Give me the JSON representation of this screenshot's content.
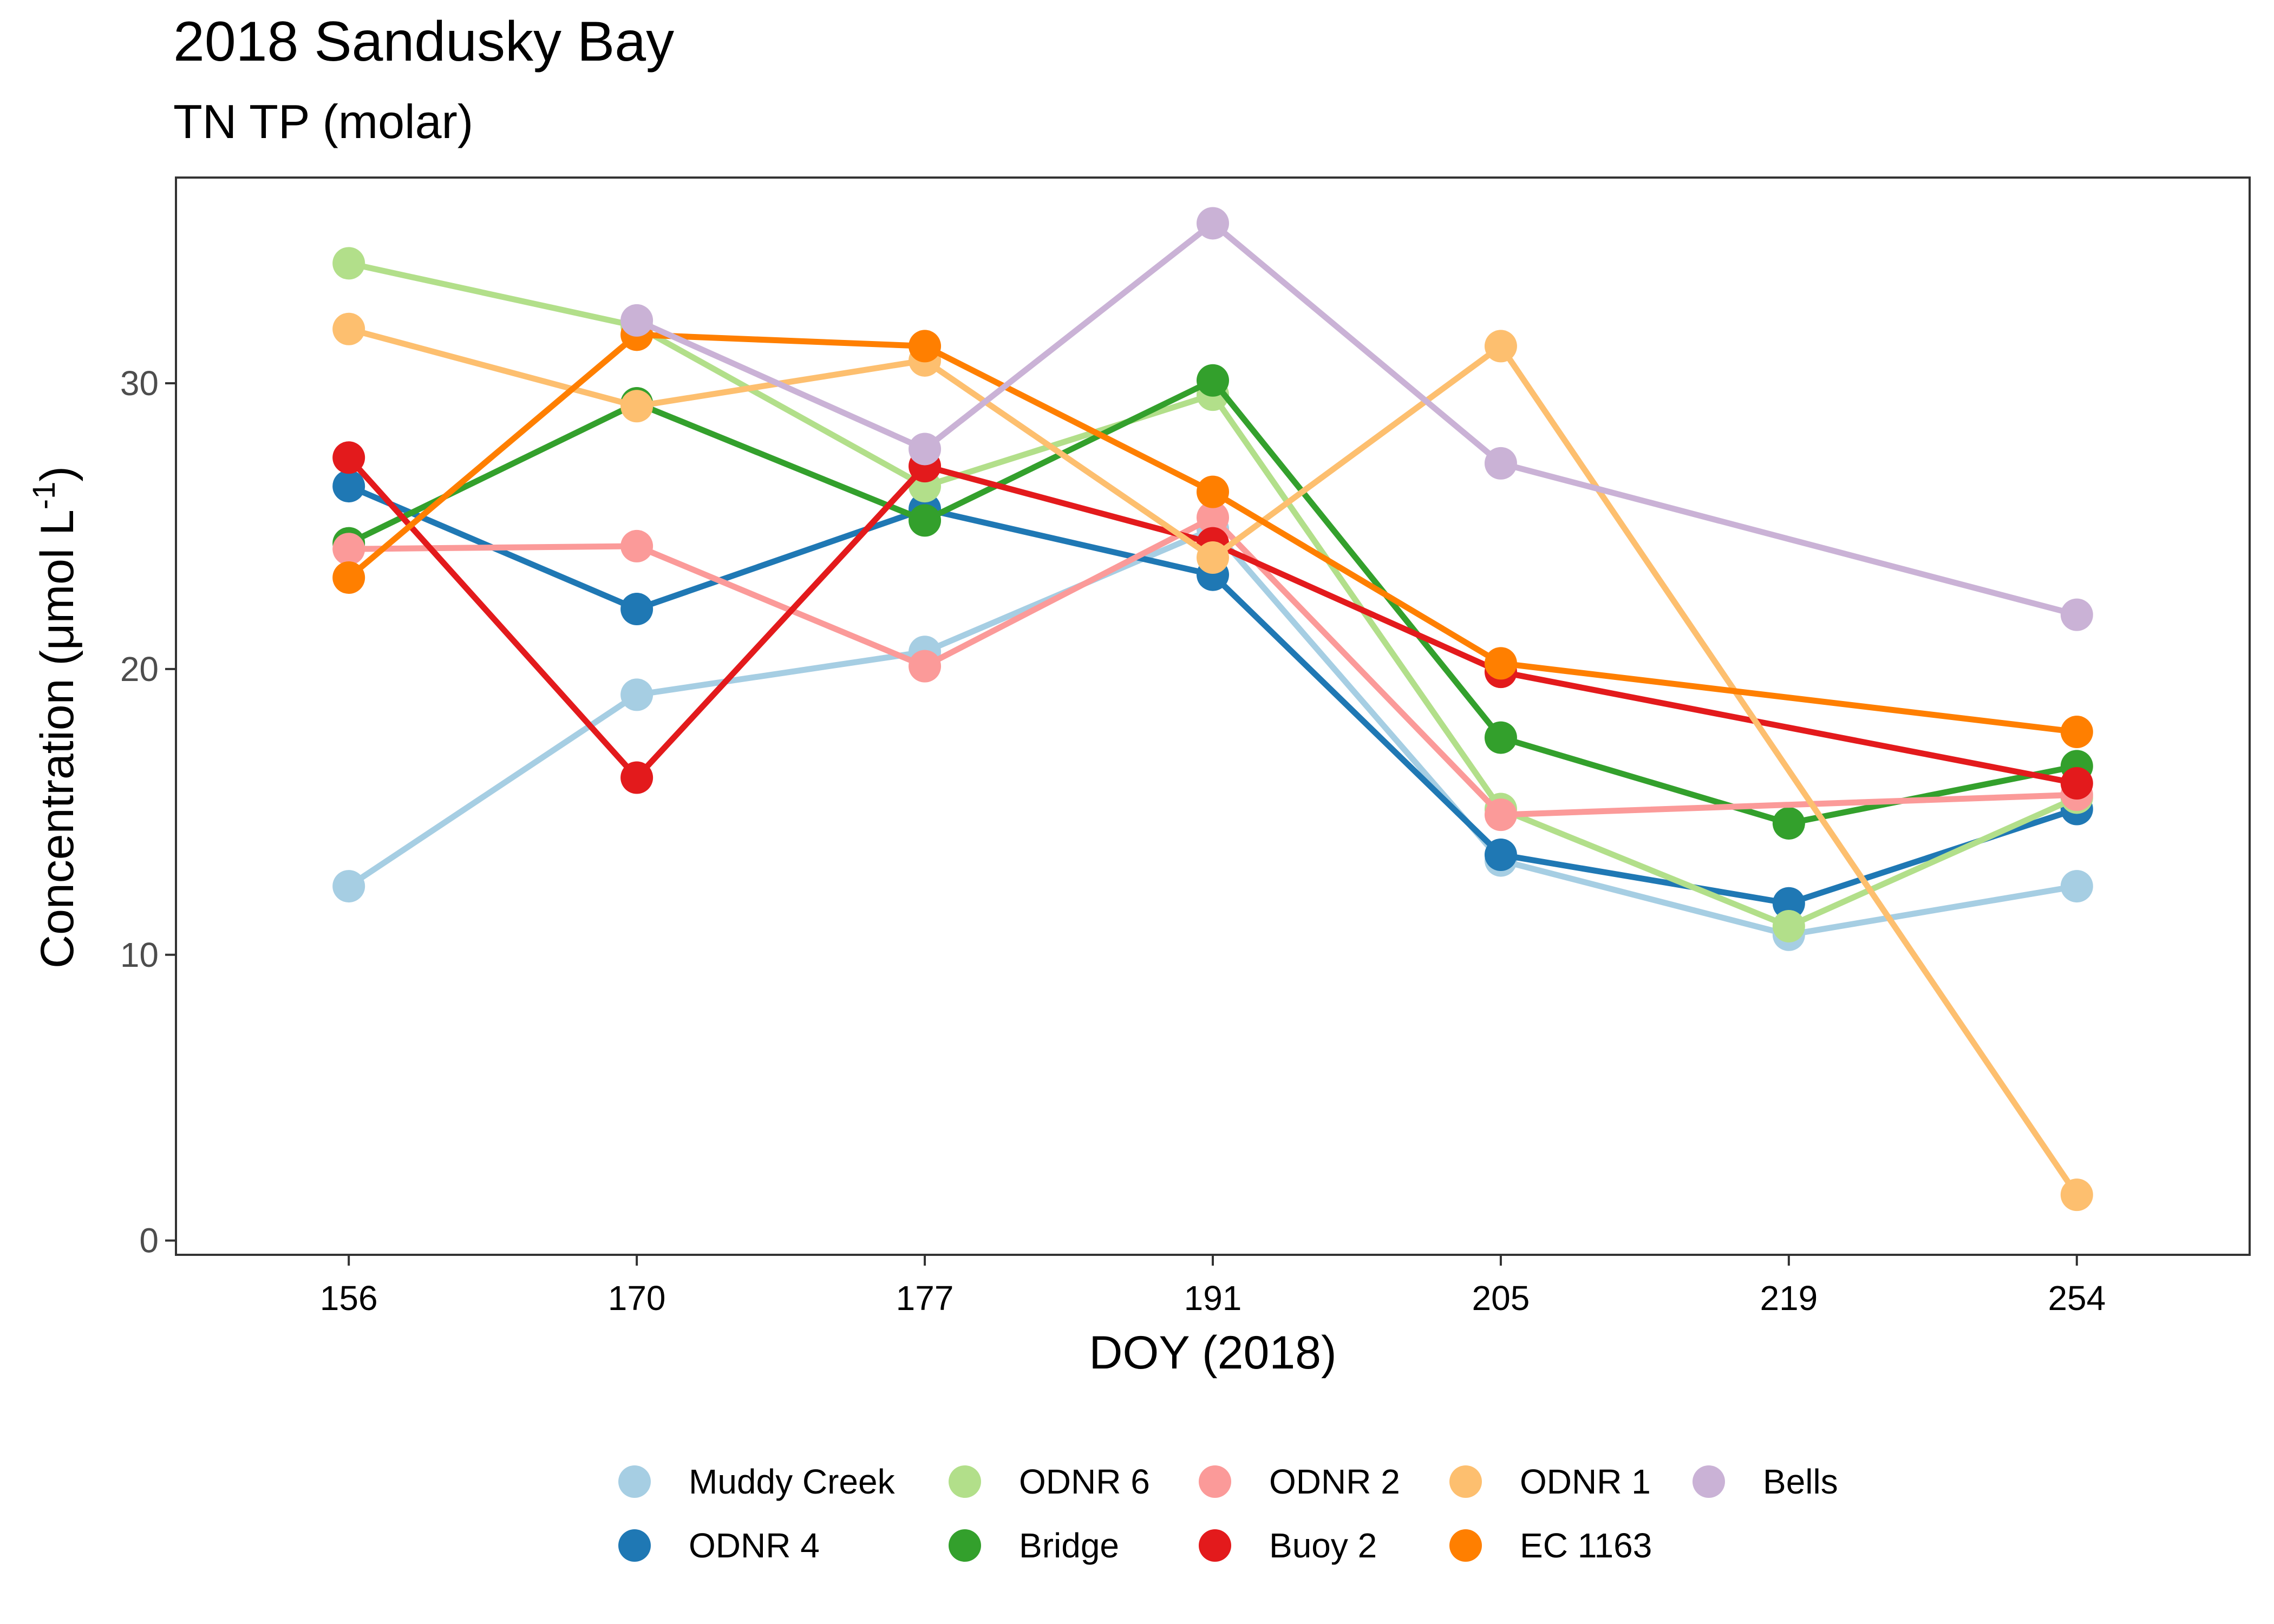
{
  "chart_data": {
    "type": "line",
    "title": "2018 Sandusky Bay",
    "subtitle": "TN TP (molar)",
    "xlabel": "DOY (2018)",
    "ylabel": "Concentration (μmol L",
    "ylabel_superscript": "-1",
    "ylabel_close": ")",
    "categories": [
      "156",
      "170",
      "177",
      "191",
      "205",
      "219",
      "254"
    ],
    "y_ticks": [
      0,
      10,
      20,
      30
    ],
    "ylim": [
      -0.5,
      37.2
    ],
    "grid": false,
    "legend_position": "bottom",
    "series": [
      {
        "name": "Muddy Creek",
        "color": "#A6CEE3",
        "values": [
          12.4,
          19.1,
          20.6,
          24.9,
          13.3,
          10.7,
          12.4
        ]
      },
      {
        "name": "ODNR 4",
        "color": "#1F78B4",
        "values": [
          26.4,
          22.1,
          25.6,
          23.3,
          13.5,
          11.8,
          15.1
        ]
      },
      {
        "name": "ODNR 6",
        "color": "#B2DF8A",
        "values": [
          34.2,
          32.0,
          26.4,
          29.6,
          15.1,
          11.0,
          15.5
        ]
      },
      {
        "name": "Bridge",
        "color": "#33A02C",
        "values": [
          24.4,
          29.3,
          25.2,
          30.1,
          17.6,
          14.6,
          16.6
        ]
      },
      {
        "name": "ODNR 2",
        "color": "#FB9A99",
        "values": [
          24.2,
          24.3,
          20.1,
          25.3,
          14.9,
          null,
          15.6
        ]
      },
      {
        "name": "Buoy 2",
        "color": "#E31A1C",
        "values": [
          27.4,
          16.2,
          27.1,
          24.4,
          19.9,
          null,
          16.0
        ]
      },
      {
        "name": "ODNR 1",
        "color": "#FDBF6F",
        "values": [
          31.9,
          29.2,
          30.8,
          23.9,
          31.3,
          null,
          1.6
        ]
      },
      {
        "name": "EC 1163",
        "color": "#FF7F00",
        "values": [
          23.2,
          31.7,
          31.3,
          26.2,
          20.2,
          null,
          17.8
        ]
      },
      {
        "name": "Bells",
        "color": "#CAB2D6",
        "values": [
          null,
          32.2,
          27.7,
          35.6,
          27.2,
          null,
          21.9
        ]
      }
    ]
  }
}
